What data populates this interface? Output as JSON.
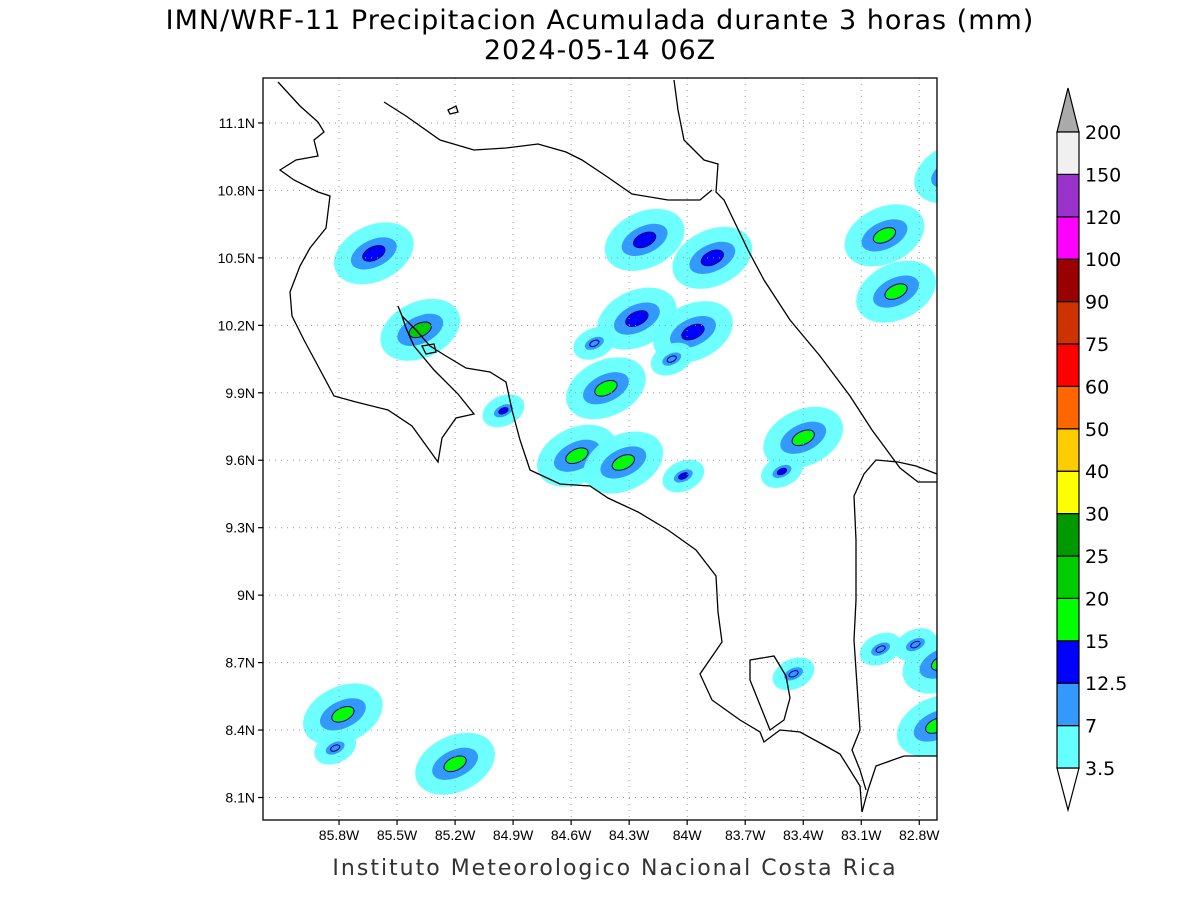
{
  "title": {
    "line1": "IMN/WRF-11 Precipitacion Acumulada durante 3 horas (mm)",
    "line2": "2024-05-14 06Z"
  },
  "credit": "Instituto Meteorologico Nacional Costa Rica",
  "map": {
    "lon_range": [
      -86.1,
      -82.8
    ],
    "lat_range": [
      8.0,
      11.3
    ],
    "lat_ticks": [
      "11.1N",
      "10.8N",
      "10.5N",
      "10.2N",
      "9.9N",
      "9.6N",
      "9.3N",
      "9N",
      "8.7N",
      "8.4N",
      "8.1N"
    ],
    "lon_ticks": [
      "85.8W",
      "85.5W",
      "85.2W",
      "84.9W",
      "84.6W",
      "84.3W",
      "84W",
      "83.7W",
      "83.4W",
      "83.1W",
      "82.8W"
    ],
    "grid": true,
    "grid_style": "dotted"
  },
  "colorbar": {
    "levels": [
      "3.5",
      "7",
      "12.5",
      "15",
      "20",
      "25",
      "30",
      "40",
      "50",
      "60",
      "75",
      "90",
      "100",
      "120",
      "150",
      "200"
    ],
    "colors": [
      "#66ffff",
      "#3399ff",
      "#0000ff",
      "#00ff00",
      "#00cc00",
      "#009900",
      "#ffff00",
      "#ffcc00",
      "#ff6600",
      "#ff0000",
      "#cc3300",
      "#990000",
      "#ff00ff",
      "#9933cc",
      "#f0f0f0",
      "#aaaaaa"
    ],
    "under_color": "#ffffff",
    "over_color": "#aaaaaa"
  },
  "precip_cells": [
    {
      "lon": -82.62,
      "lat": 10.88,
      "level": "7",
      "core": "12.5"
    },
    {
      "lon": -82.92,
      "lat": 10.35,
      "level": "7",
      "core": "15"
    },
    {
      "lon": -82.98,
      "lat": 10.6,
      "level": "7",
      "core": "15"
    },
    {
      "lon": -85.62,
      "lat": 10.52,
      "level": "7",
      "core": "12.5"
    },
    {
      "lon": -85.38,
      "lat": 10.18,
      "level": "7",
      "core": "20"
    },
    {
      "lon": -84.42,
      "lat": 9.92,
      "level": "7",
      "core": "15"
    },
    {
      "lon": -84.57,
      "lat": 9.62,
      "level": "7",
      "core": "15"
    },
    {
      "lon": -84.33,
      "lat": 9.59,
      "level": "7",
      "core": "15"
    },
    {
      "lon": -83.4,
      "lat": 9.7,
      "level": "7",
      "core": "15"
    },
    {
      "lon": -84.22,
      "lat": 10.58,
      "level": "7",
      "core": "12.5"
    },
    {
      "lon": -83.87,
      "lat": 10.5,
      "level": "7",
      "core": "12.5"
    },
    {
      "lon": -84.26,
      "lat": 10.23,
      "level": "7",
      "core": "12.5"
    },
    {
      "lon": -83.97,
      "lat": 10.17,
      "level": "7",
      "core": "12.5"
    },
    {
      "lon": -82.68,
      "lat": 8.7,
      "level": "7",
      "core": "15"
    },
    {
      "lon": -82.71,
      "lat": 8.42,
      "level": "7",
      "core": "15"
    },
    {
      "lon": -85.78,
      "lat": 8.47,
      "level": "7",
      "core": "15"
    },
    {
      "lon": -85.2,
      "lat": 8.25,
      "level": "7",
      "core": "15"
    },
    {
      "lon": -83.45,
      "lat": 8.65,
      "level": "3.5",
      "core": "7"
    },
    {
      "lon": -83.0,
      "lat": 8.76,
      "level": "3.5",
      "core": "7"
    },
    {
      "lon": -82.82,
      "lat": 8.78,
      "level": "3.5",
      "core": "7"
    },
    {
      "lon": -83.51,
      "lat": 9.55,
      "level": "3.5",
      "core": "12.5"
    },
    {
      "lon": -84.02,
      "lat": 9.53,
      "level": "3.5",
      "core": "12.5"
    },
    {
      "lon": -84.95,
      "lat": 9.82,
      "level": "3.5",
      "core": "12.5"
    },
    {
      "lon": -84.08,
      "lat": 10.05,
      "level": "3.5",
      "core": "7"
    },
    {
      "lon": -84.48,
      "lat": 10.12,
      "level": "3.5",
      "core": "7"
    },
    {
      "lon": -85.82,
      "lat": 8.32,
      "level": "3.5",
      "core": "7"
    }
  ]
}
